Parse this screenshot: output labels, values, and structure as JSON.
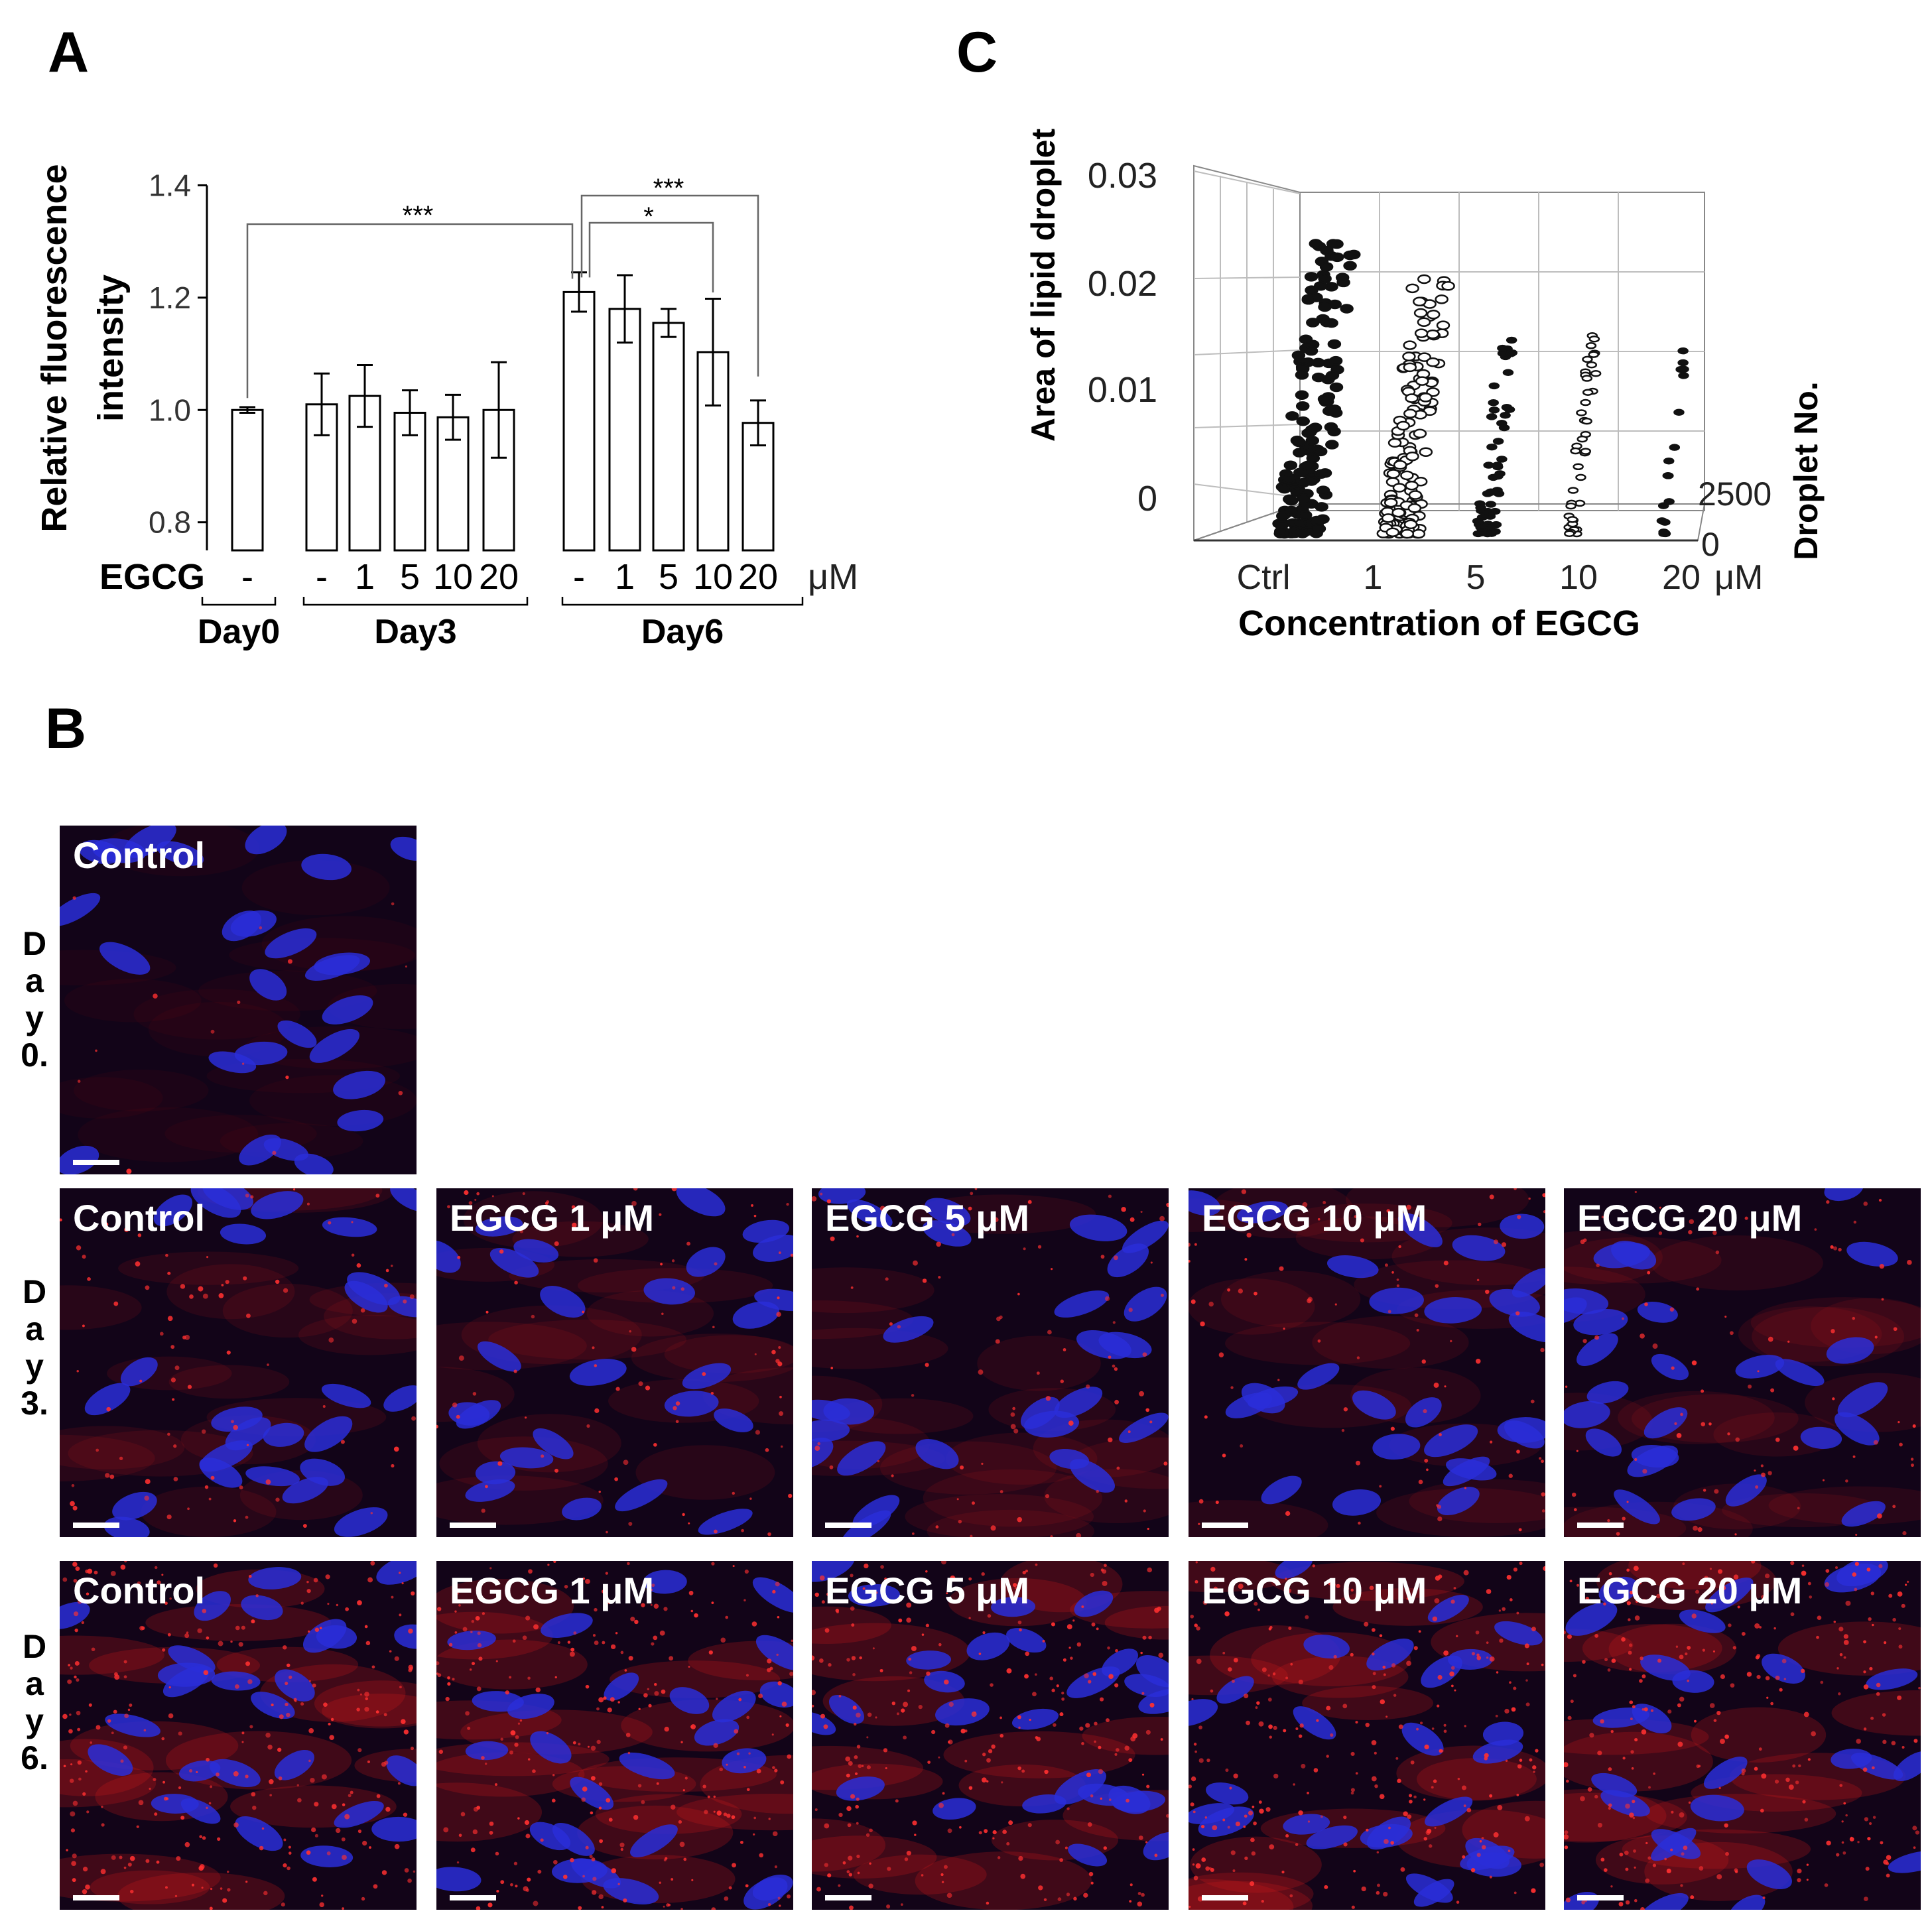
{
  "panels": {
    "a": "A",
    "b": "B",
    "c": "C"
  },
  "chart_data": [
    {
      "type": "bar",
      "ylabel_line1": "Relative fluorescence",
      "ylabel_line2": "intensity",
      "ylim": [
        0.75,
        1.4
      ],
      "yticks": [
        "1.4",
        "1.2",
        "1.0",
        "0.8"
      ],
      "x_prefix": "EGCG",
      "unit": "μM",
      "categories": [
        "-",
        "-",
        "1",
        "5",
        "10",
        "20",
        "-",
        "1",
        "5",
        "10",
        "20"
      ],
      "groups": [
        "Day0",
        "Day3",
        "Day6"
      ],
      "values": [
        1.0,
        1.01,
        1.025,
        0.995,
        0.987,
        1.0,
        1.21,
        1.18,
        1.155,
        1.103,
        0.977
      ],
      "errors": [
        0.005,
        0.055,
        0.055,
        0.04,
        0.04,
        0.085,
        0.035,
        0.06,
        0.025,
        0.095,
        0.04
      ],
      "significance": [
        "***",
        "***",
        "*"
      ]
    },
    {
      "type": "scatter",
      "zlabel": "Area of lipid droplet",
      "zticks": [
        "0.03",
        "0.02",
        "0.01",
        "0"
      ],
      "xlabel": "Concentration of EGCG",
      "categories": [
        "Ctrl",
        "1",
        "5",
        "10",
        "20"
      ],
      "unit": "μM",
      "depth_label": "Droplet No.",
      "depth_ticks": [
        "2500",
        "0"
      ]
    }
  ],
  "microscopy": {
    "row_labels": [
      [
        "D",
        "a",
        "y",
        "0."
      ],
      [
        "D",
        "a",
        "y",
        "3."
      ],
      [
        "D",
        "a",
        "y",
        "6."
      ]
    ],
    "tile_labels": [
      "Control",
      "EGCG 1 μM",
      "EGCG 5 μM",
      "EGCG 10 μM",
      "EGCG 20 μM"
    ],
    "colors": {
      "nuclei": "#2a2ed8",
      "lipid": "#d01818",
      "background": "#120418"
    }
  }
}
